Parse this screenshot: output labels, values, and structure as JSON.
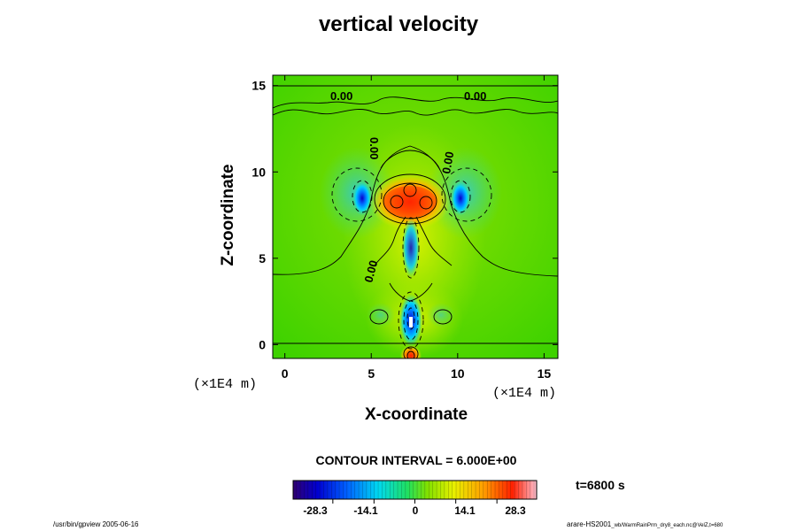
{
  "chart_data": {
    "type": "contour",
    "title": "vertical velocity",
    "xlabel": "X-coordinate",
    "ylabel": "Z-coordinate",
    "x_unit": "(×1E4 m)",
    "z_unit": "(×1E4 m)",
    "xlim": [
      -0.7,
      15.8
    ],
    "ylim": [
      -0.8,
      15.6
    ],
    "x_ticks": [
      "0",
      "5",
      "10",
      "15"
    ],
    "y_ticks": [
      "0",
      "5",
      "10",
      "15"
    ],
    "contour_interval": "CONTOUR INTERVAL = 6.000E+00",
    "contour_labels": [
      "0.00",
      "0.00",
      "0.00",
      "0.00",
      "0.00"
    ],
    "time": "t=6800 s",
    "colorbar": {
      "range": [
        -42,
        42
      ],
      "tick_labels": [
        "-28.3",
        "-14.1",
        "0",
        "14.1",
        "28.3"
      ],
      "tick_values": [
        -28.3,
        -14.1,
        0,
        14.1,
        28.3
      ]
    },
    "features": [
      {
        "x": 7.2,
        "z": 8.4,
        "value": 36,
        "kind": "updraft"
      },
      {
        "x": 4.4,
        "z": 8.4,
        "value": -30,
        "kind": "downdraft"
      },
      {
        "x": 10.1,
        "z": 8.4,
        "value": -30,
        "kind": "downdraft"
      },
      {
        "x": 7.2,
        "z": 1.2,
        "value": -40,
        "kind": "downdraft"
      },
      {
        "x": 7.2,
        "z": 5.8,
        "value": -14,
        "kind": "downdraft"
      },
      {
        "x": 7.2,
        "z": -0.6,
        "value": 30,
        "kind": "updraft"
      }
    ]
  },
  "footer": {
    "left": "/usr/bin/gpview 2005-06-16",
    "right_main": "arare-HS2001",
    "right_small": "_wb/WarmRainPrm_dry8_each.nc@VelZ,t=680"
  }
}
